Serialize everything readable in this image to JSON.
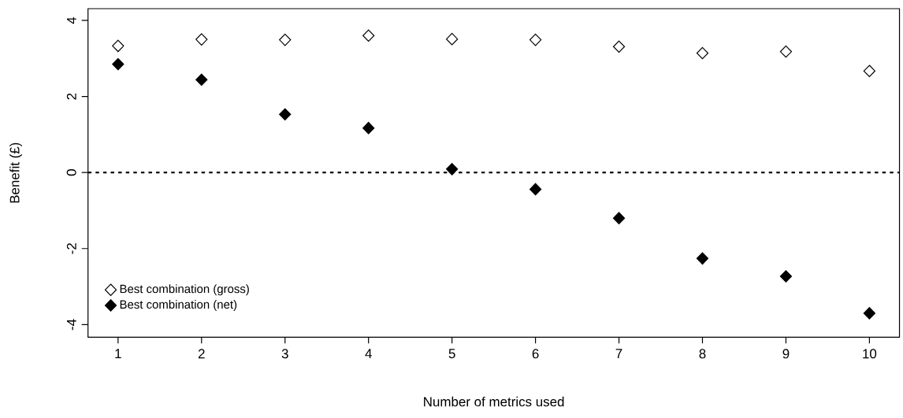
{
  "chart_data": {
    "type": "scatter",
    "xlabel": "Number of metrics used",
    "ylabel": "Benefit (£)",
    "x": [
      1,
      2,
      3,
      4,
      5,
      6,
      7,
      8,
      9,
      10
    ],
    "series": [
      {
        "name": "Best combination (gross)",
        "color": "#ffffff",
        "values": [
          3.33,
          3.5,
          3.49,
          3.6,
          3.51,
          3.49,
          3.31,
          3.14,
          3.18,
          2.67
        ]
      },
      {
        "name": "Best combination (net)",
        "color": "#000000",
        "values": [
          2.85,
          2.44,
          1.53,
          1.17,
          0.09,
          -0.44,
          -1.2,
          -2.26,
          -2.73,
          -3.7
        ]
      }
    ],
    "xlim": [
      0.64,
      10.36
    ],
    "ylim": [
      -4.33,
      4.31
    ],
    "xticks": [
      1,
      2,
      3,
      4,
      5,
      6,
      7,
      8,
      9,
      10
    ],
    "yticks": [
      -4,
      -2,
      0,
      2,
      4
    ],
    "ref_lines": [
      {
        "axis": "y",
        "value": 0,
        "color": "#000000",
        "line_style": "dotted"
      }
    ],
    "marker": "diamond",
    "legend": "bottom left",
    "grid": false
  }
}
